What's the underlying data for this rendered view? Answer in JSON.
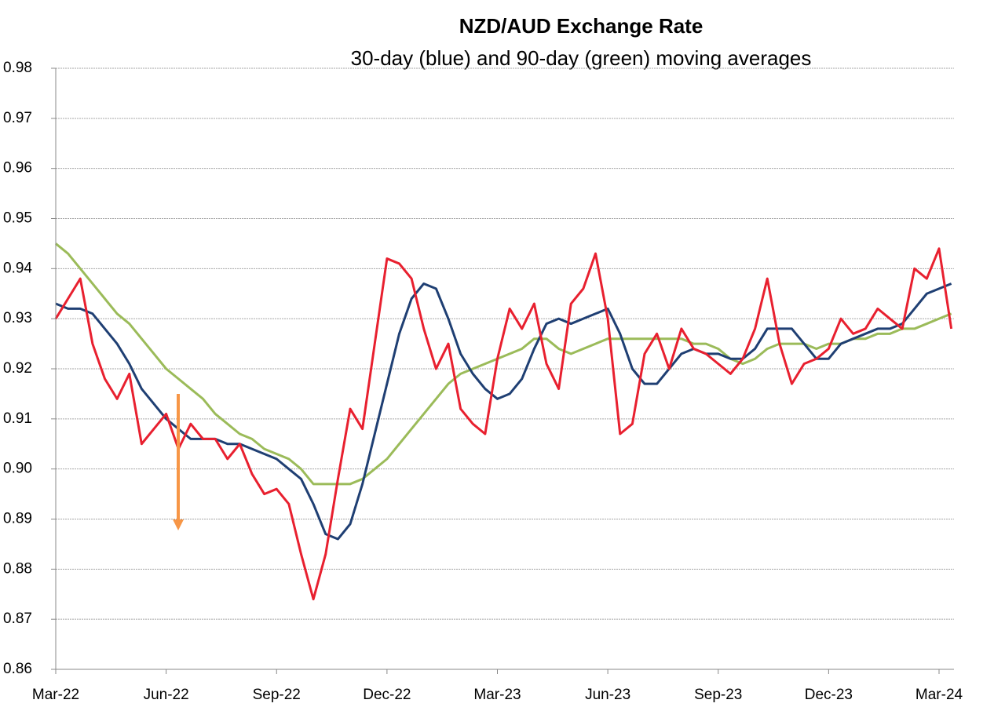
{
  "chart_data": {
    "type": "line",
    "title": "NZD/AUD Exchange Rate",
    "subtitle": "30-day (blue) and 90-day (green) moving averages",
    "categories": [
      "Mar-22",
      null,
      null,
      null,
      null,
      null,
      null,
      null,
      null,
      "Jun-22",
      null,
      null,
      null,
      null,
      null,
      null,
      null,
      null,
      "Sep-22",
      null,
      null,
      null,
      null,
      null,
      null,
      null,
      null,
      "Dec-22",
      null,
      null,
      null,
      null,
      null,
      null,
      null,
      null,
      "Mar-23",
      null,
      null,
      null,
      null,
      null,
      null,
      null,
      null,
      "Jun-23",
      null,
      null,
      null,
      null,
      null,
      null,
      null,
      null,
      "Sep-23",
      null,
      null,
      null,
      null,
      null,
      null,
      null,
      null,
      "Dec-23",
      null,
      null,
      null,
      null,
      null,
      null,
      null,
      null,
      "Mar-24",
      null
    ],
    "series": [
      {
        "color": "#e8202f",
        "values": [
          0.93,
          0.934,
          0.938,
          0.925,
          0.918,
          0.914,
          0.919,
          0.905,
          0.908,
          0.911,
          0.904,
          0.909,
          0.906,
          0.906,
          0.902,
          0.905,
          0.899,
          0.895,
          0.896,
          0.893,
          0.883,
          0.874,
          0.883,
          0.898,
          0.912,
          0.908,
          0.925,
          0.942,
          0.941,
          0.938,
          0.928,
          0.92,
          0.925,
          0.912,
          0.909,
          0.907,
          0.922,
          0.932,
          0.928,
          0.933,
          0.921,
          0.916,
          0.933,
          0.936,
          0.943,
          0.93,
          0.907,
          0.909,
          0.923,
          0.927,
          0.92,
          0.928,
          0.924,
          0.923,
          0.921,
          0.919,
          0.922,
          0.928,
          0.938,
          0.925,
          0.917,
          0.921,
          0.922,
          0.924,
          0.93,
          0.927,
          0.928,
          0.932,
          0.93,
          0.928,
          0.94,
          0.938,
          0.944,
          0.928
        ]
      },
      {
        "color": "#1f3f73",
        "values": [
          0.933,
          0.932,
          0.932,
          0.931,
          0.928,
          0.925,
          0.921,
          0.916,
          0.913,
          0.91,
          0.908,
          0.906,
          0.906,
          0.906,
          0.905,
          0.905,
          0.904,
          0.903,
          0.902,
          0.9,
          0.898,
          0.893,
          0.887,
          0.886,
          0.889,
          0.897,
          0.907,
          0.917,
          0.927,
          0.934,
          0.937,
          0.936,
          0.93,
          0.923,
          0.919,
          0.916,
          0.914,
          0.915,
          0.918,
          0.924,
          0.929,
          0.93,
          0.929,
          0.93,
          0.931,
          0.932,
          0.927,
          0.92,
          0.917,
          0.917,
          0.92,
          0.923,
          0.924,
          0.923,
          0.923,
          0.922,
          0.922,
          0.924,
          0.928,
          0.928,
          0.928,
          0.925,
          0.922,
          0.922,
          0.925,
          0.926,
          0.927,
          0.928,
          0.928,
          0.929,
          0.932,
          0.935,
          0.936,
          0.937
        ]
      },
      {
        "color": "#9bbb59",
        "values": [
          0.945,
          0.943,
          0.94,
          0.937,
          0.934,
          0.931,
          0.929,
          0.926,
          0.923,
          0.92,
          0.918,
          0.916,
          0.914,
          0.911,
          0.909,
          0.907,
          0.906,
          0.904,
          0.903,
          0.902,
          0.9,
          0.897,
          0.897,
          0.897,
          0.897,
          0.898,
          0.9,
          0.902,
          0.905,
          0.908,
          0.911,
          0.914,
          0.917,
          0.919,
          0.92,
          0.921,
          0.922,
          0.923,
          0.924,
          0.926,
          0.926,
          0.924,
          0.923,
          0.924,
          0.925,
          0.926,
          0.926,
          0.926,
          0.926,
          0.926,
          0.926,
          0.926,
          0.925,
          0.925,
          0.924,
          0.922,
          0.921,
          0.922,
          0.924,
          0.925,
          0.925,
          0.925,
          0.924,
          0.925,
          0.925,
          0.926,
          0.926,
          0.927,
          0.927,
          0.928,
          0.928,
          0.929,
          0.93,
          0.931
        ]
      }
    ],
    "ylim": [
      0.86,
      0.98
    ],
    "yticks": [
      0.86,
      0.87,
      0.88,
      0.89,
      {
        "value": 0.9,
        "label": "0.90"
      },
      0.91,
      0.92,
      0.93,
      0.94,
      0.95,
      0.96,
      0.97,
      0.98
    ],
    "grid": true
  }
}
